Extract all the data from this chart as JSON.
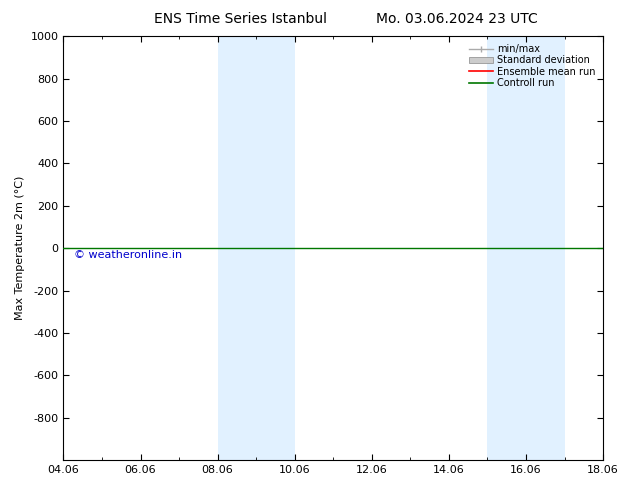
{
  "title_left": "ENS Time Series Istanbul",
  "title_right": "Mo. 03.06.2024 23 UTC",
  "ylabel": "Max Temperature 2m (°C)",
  "xlim": [
    0,
    14
  ],
  "ylim_top": -1000,
  "ylim_bottom": 1000,
  "yticks": [
    -800,
    -600,
    -400,
    -200,
    0,
    200,
    400,
    600,
    800,
    1000
  ],
  "xtick_labels": [
    "04.06",
    "06.06",
    "08.06",
    "10.06",
    "12.06",
    "14.06",
    "16.06",
    "18.06"
  ],
  "xtick_positions": [
    0,
    2,
    4,
    6,
    8,
    10,
    12,
    14
  ],
  "shade_bands": [
    [
      4.0,
      5.0
    ],
    [
      5.0,
      6.0
    ],
    [
      11.0,
      12.0
    ],
    [
      12.0,
      13.0
    ]
  ],
  "shade_color": "#daeeff",
  "shade_alpha": 0.8,
  "control_run_y": 0,
  "control_run_color": "#007700",
  "ensemble_mean_color": "#ff0000",
  "background_color": "#ffffff",
  "legend_labels": [
    "min/max",
    "Standard deviation",
    "Ensemble mean run",
    "Controll run"
  ],
  "legend_colors": [
    "#aaaaaa",
    "#cccccc",
    "#ff0000",
    "#007700"
  ],
  "watermark": "© weatheronline.in",
  "watermark_color": "#0000cc",
  "title_fontsize": 10,
  "axis_fontsize": 8,
  "tick_fontsize": 8
}
